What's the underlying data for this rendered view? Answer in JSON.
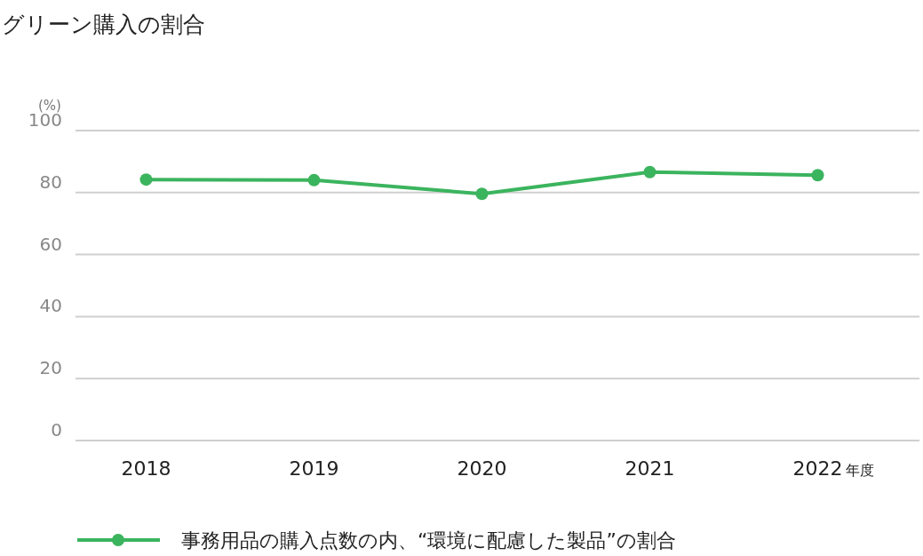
{
  "chart_data": {
    "type": "line",
    "title": "グリーン購入の割合",
    "ylabel": "(%)",
    "xlabel": "年度",
    "categories": [
      "2018",
      "2019",
      "2020",
      "2021",
      "2022"
    ],
    "series": [
      {
        "name": "事務用品の購入点数の内、“環境に配慮した製品”の割合",
        "color": "#3bb45e",
        "values": [
          84.2,
          84.0,
          79.6,
          86.6,
          85.6
        ]
      }
    ],
    "ylim": [
      0,
      100
    ],
    "yticks": [
      0,
      20,
      40,
      60,
      80,
      100
    ],
    "grid": "y",
    "legend": "bottom",
    "marker": "circle",
    "line_style": "solid"
  }
}
